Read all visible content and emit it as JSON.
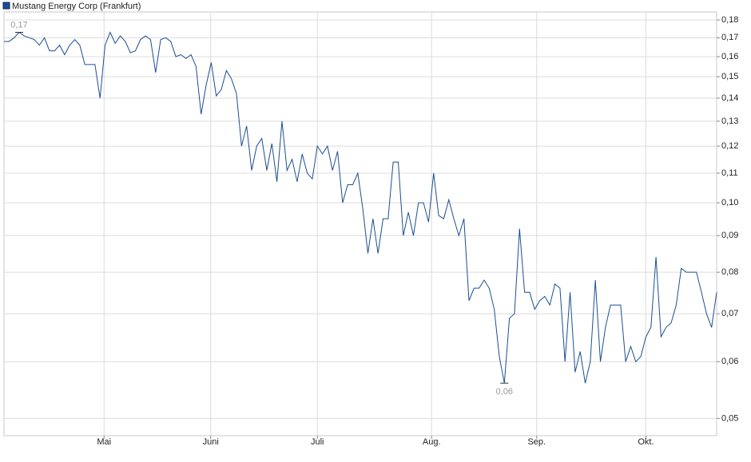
{
  "chart_data": {
    "type": "line",
    "log_scale": true,
    "grid": true,
    "series": [
      {
        "name": "Mustang Energy Corp (Frankfurt)",
        "color": "#1b4f91",
        "values": [
          0.168,
          0.168,
          0.17,
          0.173,
          0.171,
          0.17,
          0.169,
          0.166,
          0.17,
          0.163,
          0.163,
          0.166,
          0.161,
          0.166,
          0.169,
          0.166,
          0.156,
          0.156,
          0.156,
          0.14,
          0.166,
          0.173,
          0.167,
          0.171,
          0.168,
          0.162,
          0.163,
          0.169,
          0.171,
          0.169,
          0.152,
          0.169,
          0.17,
          0.168,
          0.16,
          0.161,
          0.159,
          0.161,
          0.155,
          0.133,
          0.146,
          0.157,
          0.141,
          0.144,
          0.153,
          0.149,
          0.142,
          0.12,
          0.128,
          0.111,
          0.12,
          0.123,
          0.111,
          0.121,
          0.107,
          0.13,
          0.111,
          0.115,
          0.107,
          0.117,
          0.11,
          0.108,
          0.12,
          0.117,
          0.12,
          0.111,
          0.118,
          0.1,
          0.106,
          0.106,
          0.11,
          0.098,
          0.085,
          0.095,
          0.085,
          0.095,
          0.095,
          0.114,
          0.114,
          0.09,
          0.097,
          0.09,
          0.1,
          0.1,
          0.094,
          0.11,
          0.096,
          0.095,
          0.101,
          0.095,
          0.09,
          0.095,
          0.073,
          0.076,
          0.076,
          0.078,
          0.076,
          0.071,
          0.061,
          0.056,
          0.069,
          0.07,
          0.092,
          0.075,
          0.075,
          0.071,
          0.073,
          0.074,
          0.072,
          0.077,
          0.076,
          0.06,
          0.075,
          0.058,
          0.062,
          0.056,
          0.06,
          0.078,
          0.06,
          0.067,
          0.072,
          0.072,
          0.072,
          0.06,
          0.063,
          0.06,
          0.061,
          0.065,
          0.067,
          0.084,
          0.065,
          0.067,
          0.068,
          0.072,
          0.081,
          0.08,
          0.08,
          0.08,
          0.075,
          0.07,
          0.067,
          0.075
        ]
      }
    ],
    "xlim": [
      0,
      141
    ],
    "xticks": [
      {
        "value": 19.8,
        "label": "Mai"
      },
      {
        "value": 40.9,
        "label": "Juni"
      },
      {
        "value": 62,
        "label": "Juli"
      },
      {
        "value": 84.6,
        "label": "Aug."
      },
      {
        "value": 105.4,
        "label": "Sep."
      },
      {
        "value": 127,
        "label": "Okt."
      }
    ],
    "ylim": [
      0.0473,
      0.1847
    ],
    "yticks": [
      {
        "value": 0.05,
        "label": "0,05"
      },
      {
        "value": 0.06,
        "label": "0,06"
      },
      {
        "value": 0.07,
        "label": "0,07"
      },
      {
        "value": 0.08,
        "label": "0,08"
      },
      {
        "value": 0.09,
        "label": "0,09"
      },
      {
        "value": 0.1,
        "label": "0,10"
      },
      {
        "value": 0.11,
        "label": "0,11"
      },
      {
        "value": 0.12,
        "label": "0,12"
      },
      {
        "value": 0.13,
        "label": "0,13"
      },
      {
        "value": 0.14,
        "label": "0,14"
      },
      {
        "value": 0.15,
        "label": "0,15"
      },
      {
        "value": 0.16,
        "label": "0,16"
      },
      {
        "value": 0.17,
        "label": "0,17"
      },
      {
        "value": 0.18,
        "label": "0,18"
      }
    ],
    "annotations": [
      {
        "text": "0,17",
        "index": 3,
        "position": "above"
      },
      {
        "text": "0,06",
        "index": 99,
        "position": "below"
      }
    ]
  }
}
